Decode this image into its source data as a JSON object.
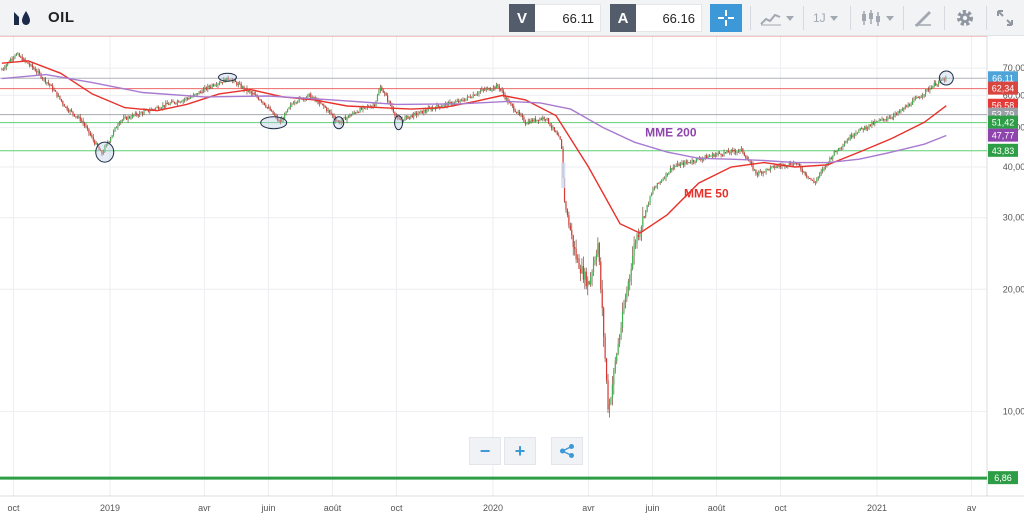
{
  "toolbar": {
    "symbol": "OIL",
    "bid_tag": "V",
    "bid_value": "66.11",
    "ask_tag": "A",
    "ask_value": "66.16",
    "interval_label": "1J",
    "icons": [
      "oil-drop-logo-icon",
      "crosshair-icon",
      "chart-type-icon",
      "candlestick-icon",
      "drawing-tools-icon",
      "gear-icon",
      "fullscreen-icon"
    ]
  },
  "chart_data": {
    "type": "candlestick",
    "y_scale": "log",
    "ylim": [
      6.2,
      84
    ],
    "y_ticks": [
      {
        "value": 70,
        "label": "70,00"
      },
      {
        "value": 60,
        "label": "60,00"
      },
      {
        "value": 50,
        "label": "50,00"
      },
      {
        "value": 40,
        "label": "40,00"
      },
      {
        "value": 30,
        "label": "30,00"
      },
      {
        "value": 20,
        "label": "20,00"
      },
      {
        "value": 10,
        "label": "10,00"
      }
    ],
    "x_ticks": [
      {
        "date": "2018-10-01",
        "label": "oct"
      },
      {
        "date": "2019-01-01",
        "label": "2019"
      },
      {
        "date": "2019-04-01",
        "label": "avr"
      },
      {
        "date": "2019-06-01",
        "label": "juin"
      },
      {
        "date": "2019-08-01",
        "label": "août"
      },
      {
        "date": "2019-10-01",
        "label": "oct"
      },
      {
        "date": "2020-01-01",
        "label": "2020"
      },
      {
        "date": "2020-04-01",
        "label": "avr"
      },
      {
        "date": "2020-06-01",
        "label": "juin"
      },
      {
        "date": "2020-08-01",
        "label": "août"
      },
      {
        "date": "2020-10-01",
        "label": "oct"
      },
      {
        "date": "2021-01-01",
        "label": "2021"
      },
      {
        "date": "2021-04-01",
        "label": "av"
      }
    ],
    "price_path": [
      [
        "2018-09-20",
        69.5
      ],
      [
        "2018-10-03",
        76.0
      ],
      [
        "2018-10-20",
        70.0
      ],
      [
        "2018-11-05",
        63.5
      ],
      [
        "2018-11-20",
        56.0
      ],
      [
        "2018-12-05",
        52.0
      ],
      [
        "2018-12-24",
        43.0
      ],
      [
        "2019-01-10",
        52.0
      ],
      [
        "2019-02-01",
        54.5
      ],
      [
        "2019-03-01",
        57.5
      ],
      [
        "2019-03-20",
        59.5
      ],
      [
        "2019-04-10",
        64.0
      ],
      [
        "2019-04-25",
        66.0
      ],
      [
        "2019-05-10",
        62.0
      ],
      [
        "2019-05-25",
        58.5
      ],
      [
        "2019-06-12",
        51.5
      ],
      [
        "2019-06-25",
        58.0
      ],
      [
        "2019-07-10",
        60.0
      ],
      [
        "2019-07-25",
        56.0
      ],
      [
        "2019-08-07",
        51.5
      ],
      [
        "2019-08-25",
        55.0
      ],
      [
        "2019-09-10",
        57.0
      ],
      [
        "2019-09-16",
        63.0
      ],
      [
        "2019-10-03",
        52.0
      ],
      [
        "2019-10-20",
        54.0
      ],
      [
        "2019-11-10",
        56.5
      ],
      [
        "2019-12-01",
        58.0
      ],
      [
        "2019-12-20",
        61.5
      ],
      [
        "2020-01-06",
        63.3
      ],
      [
        "2020-01-15",
        58.0
      ],
      [
        "2020-02-01",
        51.5
      ],
      [
        "2020-02-20",
        53.0
      ],
      [
        "2020-03-06",
        46.0
      ],
      [
        "2020-03-09",
        33.0
      ],
      [
        "2020-03-20",
        24.0
      ],
      [
        "2020-04-01",
        20.5
      ],
      [
        "2020-04-10",
        26.0
      ],
      [
        "2020-04-20",
        10.0
      ],
      [
        "2020-04-28",
        14.0
      ],
      [
        "2020-05-15",
        26.0
      ],
      [
        "2020-06-01",
        35.0
      ],
      [
        "2020-06-20",
        40.0
      ],
      [
        "2020-07-10",
        41.5
      ],
      [
        "2020-08-01",
        43.0
      ],
      [
        "2020-08-25",
        44.0
      ],
      [
        "2020-09-08",
        38.5
      ],
      [
        "2020-09-25",
        40.0
      ],
      [
        "2020-10-15",
        41.0
      ],
      [
        "2020-11-02",
        36.5
      ],
      [
        "2020-11-20",
        43.0
      ],
      [
        "2020-12-10",
        48.5
      ],
      [
        "2020-12-31",
        51.5
      ],
      [
        "2021-01-20",
        54.0
      ],
      [
        "2021-02-10",
        59.5
      ],
      [
        "2021-02-25",
        64.0
      ],
      [
        "2021-03-08",
        66.1
      ]
    ],
    "series": [
      {
        "name": "MME 50",
        "color": "#e8312a",
        "points": [
          [
            "2018-09-20",
            72.0
          ],
          [
            "2018-10-15",
            73.0
          ],
          [
            "2018-11-15",
            68.0
          ],
          [
            "2018-12-15",
            60.5
          ],
          [
            "2019-01-15",
            56.0
          ],
          [
            "2019-02-15",
            55.0
          ],
          [
            "2019-03-15",
            57.0
          ],
          [
            "2019-04-15",
            60.5
          ],
          [
            "2019-05-15",
            62.0
          ],
          [
            "2019-06-15",
            59.5
          ],
          [
            "2019-07-15",
            58.5
          ],
          [
            "2019-08-15",
            56.5
          ],
          [
            "2019-09-15",
            56.0
          ],
          [
            "2019-10-15",
            55.5
          ],
          [
            "2019-11-15",
            56.0
          ],
          [
            "2019-12-15",
            58.0
          ],
          [
            "2020-01-10",
            60.0
          ],
          [
            "2020-02-01",
            58.5
          ],
          [
            "2020-03-01",
            53.5
          ],
          [
            "2020-04-01",
            40.0
          ],
          [
            "2020-05-01",
            29.0
          ],
          [
            "2020-05-20",
            27.5
          ],
          [
            "2020-06-15",
            30.5
          ],
          [
            "2020-07-15",
            36.5
          ],
          [
            "2020-08-15",
            40.0
          ],
          [
            "2020-09-15",
            41.0
          ],
          [
            "2020-10-15",
            40.0
          ],
          [
            "2020-11-15",
            40.5
          ],
          [
            "2020-12-15",
            43.5
          ],
          [
            "2021-01-15",
            47.0
          ],
          [
            "2021-02-15",
            51.5
          ],
          [
            "2021-03-08",
            56.6
          ]
        ]
      },
      {
        "name": "MME 200",
        "color": "#a97bd0",
        "points": [
          [
            "2018-09-20",
            66.0
          ],
          [
            "2018-11-01",
            67.5
          ],
          [
            "2018-12-15",
            64.5
          ],
          [
            "2019-02-01",
            61.0
          ],
          [
            "2019-04-01",
            59.5
          ],
          [
            "2019-06-01",
            59.8
          ],
          [
            "2019-08-01",
            58.5
          ],
          [
            "2019-10-01",
            57.0
          ],
          [
            "2019-12-01",
            57.2
          ],
          [
            "2020-01-15",
            58.0
          ],
          [
            "2020-02-15",
            57.5
          ],
          [
            "2020-03-15",
            55.5
          ],
          [
            "2020-04-15",
            50.0
          ],
          [
            "2020-05-15",
            46.0
          ],
          [
            "2020-06-15",
            43.5
          ],
          [
            "2020-07-15",
            42.0
          ],
          [
            "2020-08-15",
            41.8
          ],
          [
            "2020-09-15",
            41.5
          ],
          [
            "2020-10-15",
            41.0
          ],
          [
            "2020-11-15",
            41.0
          ],
          [
            "2020-12-15",
            41.8
          ],
          [
            "2021-01-15",
            43.5
          ],
          [
            "2021-02-15",
            45.5
          ],
          [
            "2021-03-08",
            47.8
          ]
        ]
      }
    ],
    "horizontal_lines": [
      {
        "value": 84,
        "color": "#ef8a8a",
        "tag": false
      },
      {
        "value": 66.11,
        "color": "#b0b3b8",
        "tag": true,
        "label": "66,11",
        "tag_color": "#4ea3d9"
      },
      {
        "value": 62.34,
        "color": "#ef6a6a",
        "tag": true,
        "label": "62,34",
        "tag_color": "#d9453f"
      },
      {
        "value": 56.58,
        "color": "#e53935",
        "tag": true,
        "label": "56,58",
        "tag_color": "#e53935",
        "line": false
      },
      {
        "value": 53.79,
        "color": "#a5a8ad",
        "tag": true,
        "label": "53,79",
        "tag_color": "#9aa0a6"
      },
      {
        "value": 51.42,
        "color": "#5fcf73",
        "tag": true,
        "label": "51,42",
        "tag_color": "#2e9e46"
      },
      {
        "value": 47.77,
        "color": "#a97bd0",
        "tag": true,
        "label": "47,77",
        "tag_color": "#8e44ad",
        "line": false
      },
      {
        "value": 43.83,
        "color": "#5fcf73",
        "tag": true,
        "label": "43,83",
        "tag_color": "#2e9e46"
      },
      {
        "value": 6.86,
        "color": "#2e9e46",
        "tag": true,
        "label": "6,86",
        "tag_color": "#2e9e46",
        "thick": true
      }
    ],
    "annotations": [
      {
        "text": "MME 200",
        "date": "2020-05-25",
        "value": 47.5,
        "color": "#8e44ad"
      },
      {
        "text": "MME 50",
        "date": "2020-07-01",
        "value": 33.6,
        "color": "#e8312a"
      }
    ],
    "ellipses": [
      {
        "date": "2018-12-27",
        "value": 43.5,
        "rx": 9,
        "ry": 10
      },
      {
        "date": "2019-04-23",
        "value": 66.5,
        "rx": 9,
        "ry": 4
      },
      {
        "date": "2019-06-06",
        "value": 51.4,
        "rx": 13,
        "ry": 6
      },
      {
        "date": "2019-08-07",
        "value": 51.4,
        "rx": 5,
        "ry": 6
      },
      {
        "date": "2019-10-03",
        "value": 51.4,
        "rx": 4,
        "ry": 7
      },
      {
        "date": "2021-03-08",
        "value": 66.2,
        "rx": 7,
        "ry": 7
      }
    ],
    "gap_box": {
      "date_from": "2020-03-06",
      "date_to": "2020-03-10",
      "top": 41.0,
      "bottom": 35.5
    }
  },
  "zoom": {
    "minus_label": "−",
    "plus_label": "+",
    "icons": [
      "zoom-out-icon",
      "zoom-in-icon",
      "share-icon"
    ]
  }
}
